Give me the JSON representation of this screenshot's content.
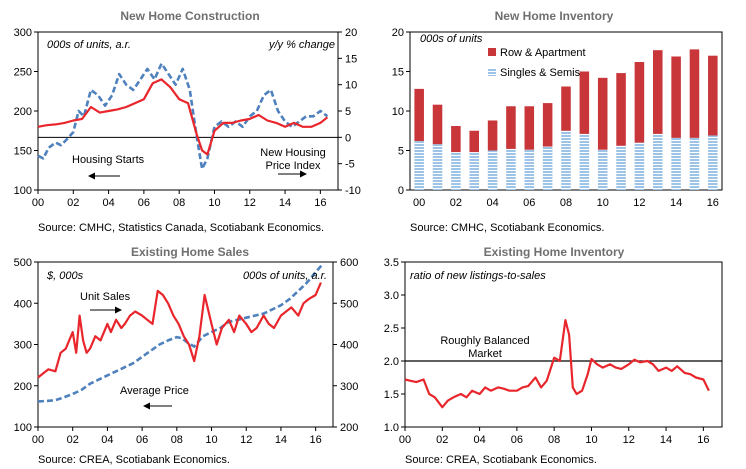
{
  "chart_data": [
    {
      "type": "line",
      "title": "New Home Construction",
      "unit_left": "000s of units, a.r.",
      "unit_right": "y/y % change",
      "ylim_left": [
        100,
        300
      ],
      "yticks_left": [
        "100",
        "150",
        "200",
        "250",
        "300"
      ],
      "ylim_right": [
        -10,
        20
      ],
      "yticks_right": [
        "-10",
        "-5",
        "0",
        "5",
        "10",
        "15",
        "20"
      ],
      "xlim": [
        0,
        17
      ],
      "xticks": [
        "00",
        "02",
        "04",
        "06",
        "08",
        "10",
        "12",
        "14",
        "16"
      ],
      "series": [
        {
          "name": "Housing Starts",
          "axis": "left",
          "color": "#e8262c",
          "style": "solid",
          "x": [
            0,
            0.5,
            1,
            1.5,
            2,
            2.5,
            3,
            3.5,
            4,
            4.5,
            5,
            5.5,
            6,
            6.5,
            7,
            7.5,
            8,
            8.5,
            9,
            9.3,
            9.6,
            10,
            10.5,
            11,
            11.5,
            12,
            12.5,
            13,
            13.5,
            14,
            14.5,
            15,
            15.5,
            16,
            16.4
          ],
          "values": [
            180,
            182,
            183,
            185,
            188,
            190,
            205,
            198,
            200,
            202,
            205,
            210,
            215,
            235,
            240,
            230,
            215,
            210,
            170,
            150,
            145,
            175,
            185,
            185,
            188,
            190,
            195,
            188,
            185,
            180,
            185,
            180,
            180,
            185,
            192
          ]
        },
        {
          "name": "New Housing Price Index",
          "axis": "right",
          "color": "#4f81bd",
          "style": "dashed",
          "x": [
            0,
            0.3,
            0.6,
            1,
            1.3,
            1.6,
            2,
            2.3,
            2.6,
            3,
            3.4,
            3.8,
            4.2,
            4.6,
            5,
            5.4,
            5.8,
            6.2,
            6.6,
            7,
            7.4,
            7.8,
            8.2,
            8.6,
            9,
            9.3,
            9.6,
            10,
            10.4,
            10.8,
            11.2,
            11.6,
            12,
            12.4,
            12.8,
            13.2,
            13.6,
            14,
            14.4,
            14.8,
            15.2,
            15.6,
            16,
            16.4
          ],
          "values": [
            -3.5,
            -4,
            -2,
            -1,
            -1.5,
            -0.5,
            1,
            5,
            4,
            9,
            8,
            6,
            8,
            12,
            10,
            9,
            11,
            13,
            11,
            14,
            12,
            10,
            13,
            9,
            0,
            -6,
            -4,
            2,
            3,
            2,
            3,
            2,
            4,
            5,
            8,
            9,
            5,
            3,
            2,
            3,
            4,
            4,
            5,
            4
          ]
        }
      ],
      "annotations": [
        "Housing Starts",
        "New Housing",
        "Price Index"
      ],
      "source": "Source: CMHC, Statistics Canada, Scotiabank Economics."
    },
    {
      "type": "bar",
      "title": "New Home Inventory",
      "unit_left": "000s of units",
      "ylim": [
        0,
        20
      ],
      "yticks": [
        "0",
        "5",
        "10",
        "15",
        "20"
      ],
      "categories": [
        "00",
        "01",
        "02",
        "03",
        "04",
        "05",
        "06",
        "07",
        "08",
        "09",
        "10",
        "11",
        "12",
        "13",
        "14",
        "15",
        "16"
      ],
      "xticks": [
        "00",
        "02",
        "04",
        "06",
        "08",
        "10",
        "12",
        "14",
        "16"
      ],
      "stacked": true,
      "series": [
        {
          "name": "Singles & Semis",
          "color": "#9dc3e6",
          "values": [
            6.2,
            5.8,
            4.8,
            4.8,
            5.0,
            5.2,
            5.1,
            5.5,
            7.5,
            7.1,
            5.1,
            5.6,
            6.0,
            7.1,
            6.6,
            6.6,
            6.9
          ]
        },
        {
          "name": "Row & Apartment",
          "color": "#c9363a",
          "values": [
            6.6,
            5.0,
            3.3,
            2.7,
            3.8,
            5.4,
            5.5,
            5.5,
            5.6,
            7.9,
            9.1,
            9.2,
            10.2,
            10.6,
            10.3,
            11.2,
            10.1
          ]
        }
      ],
      "legend": "top-right",
      "source": "Source: CMHC, Scotiabank Economics."
    },
    {
      "type": "line",
      "title": "Existing Home Sales",
      "unit_left": "$, 000s",
      "unit_right": "000s of units, a.r.",
      "ylim_left": [
        100,
        500
      ],
      "yticks_left": [
        "100",
        "200",
        "300",
        "400",
        "500"
      ],
      "ylim_right": [
        200,
        600
      ],
      "yticks_right": [
        "200",
        "300",
        "400",
        "500",
        "600"
      ],
      "xlim": [
        0,
        17
      ],
      "xticks": [
        "00",
        "02",
        "04",
        "06",
        "08",
        "10",
        "12",
        "14",
        "16"
      ],
      "series": [
        {
          "name": "Unit Sales",
          "axis": "right",
          "color": "#e8262c",
          "style": "solid",
          "x": [
            0,
            0.3,
            0.6,
            1,
            1.3,
            1.6,
            2,
            2.2,
            2.4,
            2.6,
            2.8,
            3,
            3.3,
            3.6,
            4,
            4.2,
            4.5,
            4.8,
            5,
            5.3,
            5.6,
            6,
            6.3,
            6.6,
            6.9,
            7.2,
            7.5,
            7.8,
            8.1,
            8.4,
            8.7,
            9,
            9.3,
            9.6,
            10,
            10.3,
            10.6,
            11,
            11.3,
            11.6,
            12,
            12.3,
            12.6,
            13,
            13.3,
            13.6,
            14,
            14.3,
            14.6,
            15,
            15.3,
            15.6,
            16,
            16.3
          ],
          "values": [
            320,
            330,
            340,
            335,
            380,
            390,
            430,
            380,
            470,
            410,
            380,
            390,
            420,
            410,
            450,
            430,
            460,
            440,
            450,
            470,
            480,
            470,
            460,
            450,
            530,
            520,
            500,
            470,
            450,
            420,
            400,
            360,
            420,
            520,
            450,
            400,
            440,
            460,
            430,
            470,
            450,
            430,
            440,
            470,
            450,
            440,
            470,
            480,
            490,
            470,
            500,
            510,
            520,
            550
          ]
        },
        {
          "name": "Average Price",
          "axis": "left",
          "color": "#4f81bd",
          "style": "dashed",
          "x": [
            0,
            0.5,
            1,
            1.5,
            2,
            2.5,
            3,
            3.5,
            4,
            4.5,
            5,
            5.5,
            6,
            6.5,
            7,
            7.5,
            8,
            8.3,
            8.6,
            9,
            9.5,
            10,
            10.5,
            11,
            11.5,
            12,
            12.5,
            13,
            13.5,
            14,
            14.5,
            15,
            15.5,
            16,
            16.4
          ],
          "values": [
            162,
            163,
            165,
            172,
            180,
            190,
            205,
            215,
            225,
            235,
            245,
            255,
            270,
            285,
            300,
            310,
            318,
            315,
            305,
            295,
            320,
            330,
            340,
            355,
            360,
            365,
            370,
            375,
            385,
            395,
            410,
            430,
            450,
            475,
            495
          ]
        }
      ],
      "annotations": [
        "Unit Sales",
        "Average Price"
      ],
      "source": "Source: CREA, Scotiabank Economics."
    },
    {
      "type": "line",
      "title": "Existing Home Inventory",
      "unit_left": "ratio of new listings-to-sales",
      "ylim": [
        1.0,
        3.5
      ],
      "yticks": [
        "1.0",
        "1.5",
        "2.0",
        "2.5",
        "3.0",
        "3.5"
      ],
      "xlim": [
        0,
        17
      ],
      "xticks": [
        "00",
        "02",
        "04",
        "06",
        "08",
        "10",
        "12",
        "14",
        "16"
      ],
      "reference_line": 2.0,
      "series": [
        {
          "name": "",
          "color": "#e8262c",
          "style": "solid",
          "x": [
            0,
            0.3,
            0.6,
            1,
            1.3,
            1.6,
            2,
            2.3,
            2.6,
            3,
            3.3,
            3.6,
            4,
            4.3,
            4.6,
            5,
            5.3,
            5.6,
            6,
            6.3,
            6.6,
            7,
            7.3,
            7.6,
            8,
            8.3,
            8.6,
            8.8,
            9.0,
            9.2,
            9.5,
            9.8,
            10,
            10.3,
            10.6,
            11,
            11.3,
            11.6,
            12,
            12.3,
            12.6,
            13,
            13.3,
            13.6,
            14,
            14.3,
            14.6,
            15,
            15.3,
            15.6,
            16,
            16.3
          ],
          "values": [
            1.72,
            1.7,
            1.68,
            1.72,
            1.5,
            1.45,
            1.3,
            1.4,
            1.45,
            1.5,
            1.45,
            1.55,
            1.5,
            1.6,
            1.55,
            1.6,
            1.58,
            1.55,
            1.55,
            1.6,
            1.62,
            1.75,
            1.6,
            1.7,
            2.05,
            2.0,
            2.62,
            2.4,
            1.6,
            1.5,
            1.55,
            1.8,
            2.03,
            1.95,
            1.9,
            1.95,
            1.9,
            1.88,
            1.95,
            2.02,
            1.98,
            2.0,
            1.95,
            1.85,
            1.9,
            1.85,
            1.92,
            1.82,
            1.8,
            1.75,
            1.72,
            1.55
          ]
        }
      ],
      "annotations": [
        "Roughly Balanced",
        "Market"
      ],
      "source": "Source: CREA, Scotiabank Economics."
    }
  ]
}
